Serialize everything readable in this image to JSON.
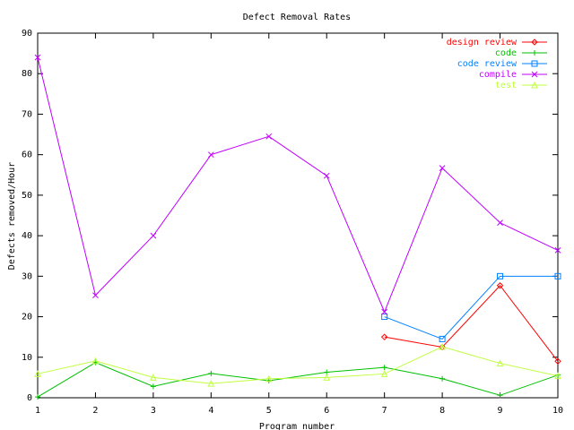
{
  "chart_data": {
    "type": "line",
    "title": "Defect Removal Rates",
    "xlabel": "Program number",
    "ylabel": "Defects removed/Hour",
    "xlim": [
      1,
      10
    ],
    "ylim": [
      0,
      90
    ],
    "xticks": [
      1,
      2,
      3,
      4,
      5,
      6,
      7,
      8,
      9,
      10
    ],
    "yticks": [
      0,
      10,
      20,
      30,
      40,
      50,
      60,
      70,
      80,
      90
    ],
    "grid": false,
    "legend_position": "top-right",
    "series": [
      {
        "name": "design review",
        "color": "#ff0000",
        "marker": "diamond",
        "points": [
          [
            7,
            15.0
          ],
          [
            8,
            12.5
          ],
          [
            9,
            27.7
          ],
          [
            10,
            9.0
          ]
        ]
      },
      {
        "name": "code",
        "color": "#00c000",
        "marker": "plus",
        "points": [
          [
            1,
            0.2
          ],
          [
            2,
            8.7
          ],
          [
            3,
            2.8
          ],
          [
            4,
            6.0
          ],
          [
            5,
            4.2
          ],
          [
            6,
            6.3
          ],
          [
            7,
            7.5
          ],
          [
            8,
            4.7
          ],
          [
            9,
            0.6
          ],
          [
            10,
            5.6
          ]
        ]
      },
      {
        "name": "code review",
        "color": "#0080ff",
        "marker": "square",
        "points": [
          [
            7,
            20.0
          ],
          [
            8,
            14.5
          ],
          [
            9,
            30.0
          ],
          [
            10,
            30.0
          ]
        ]
      },
      {
        "name": "compile",
        "color": "#c000ff",
        "marker": "x",
        "points": [
          [
            1,
            84.0
          ],
          [
            2,
            25.3
          ],
          [
            3,
            40.0
          ],
          [
            4,
            60.0
          ],
          [
            5,
            64.5
          ],
          [
            6,
            54.8
          ],
          [
            7,
            21.2
          ],
          [
            8,
            56.7
          ],
          [
            9,
            43.2
          ],
          [
            10,
            36.4
          ]
        ]
      },
      {
        "name": "test",
        "color": "#c0ff40",
        "marker": "triangle",
        "points": [
          [
            1,
            5.9
          ],
          [
            2,
            9.1
          ],
          [
            3,
            5.0
          ],
          [
            4,
            3.5
          ],
          [
            5,
            4.7
          ],
          [
            6,
            5.0
          ],
          [
            7,
            5.9
          ],
          [
            8,
            12.6
          ],
          [
            9,
            8.5
          ],
          [
            10,
            5.4
          ]
        ]
      }
    ]
  }
}
